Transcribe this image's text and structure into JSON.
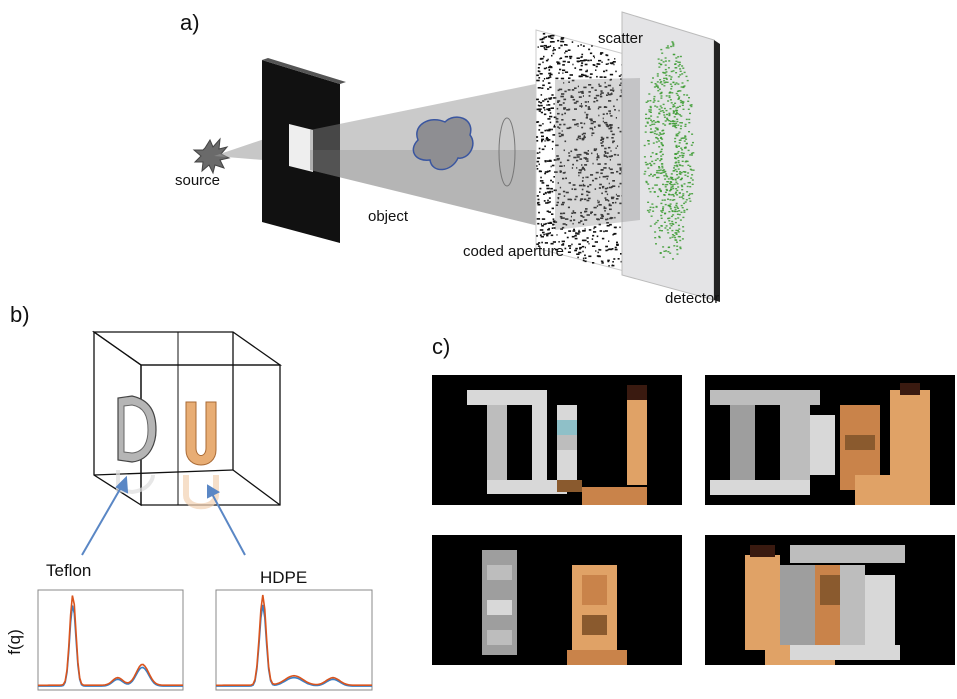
{
  "panel_a": {
    "label": "a)",
    "source_label": "source",
    "object_label": "object",
    "coded_aperture_label": "coded aperture",
    "scatter_label": "scatter",
    "detector_label": "detector"
  },
  "panel_b": {
    "label": "b)",
    "teflon_label": "Teflon",
    "hdpe_label": "HDPE",
    "y_axis_label": "f(q)",
    "series_colors": {
      "orange": "#d9541e",
      "blue": "#3b7fc4"
    }
  },
  "panel_c": {
    "label": "c)"
  },
  "colors": {
    "green_scatter": "#3a9a2f",
    "hdpe_tan": "#d79a5c",
    "teflon_gray": "#c8c8c8",
    "arrow_blue": "#5a87c5"
  }
}
